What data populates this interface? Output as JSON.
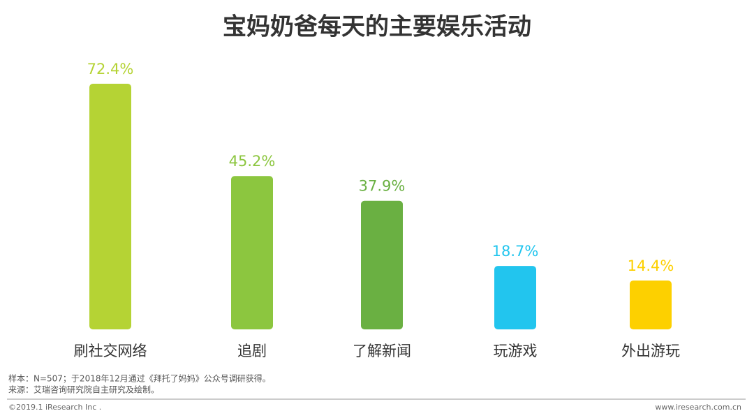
{
  "chart_data": {
    "type": "bar",
    "title": "宝妈奶爸每天的主要娱乐活动",
    "categories": [
      "刷社交网络",
      "追剧",
      "了解新闻",
      "玩游戏",
      "外出游玩"
    ],
    "values": [
      72.4,
      45.2,
      37.9,
      18.7,
      14.4
    ],
    "value_labels": [
      "72.4%",
      "45.2%",
      "37.9%",
      "18.7%",
      "14.4%"
    ],
    "colors": [
      "#b5d334",
      "#8cc63f",
      "#6ab042",
      "#22c5ee",
      "#fdd000"
    ]
  },
  "notes": [
    "样本：N=507；于2018年12月通过《拜托了妈妈》公众号调研获得。",
    "来源：艾瑞咨询研究院自主研究及绘制。"
  ],
  "footer": {
    "copyright": "©2019.1 iResearch Inc .",
    "website": "www.iresearch.com.cn"
  }
}
